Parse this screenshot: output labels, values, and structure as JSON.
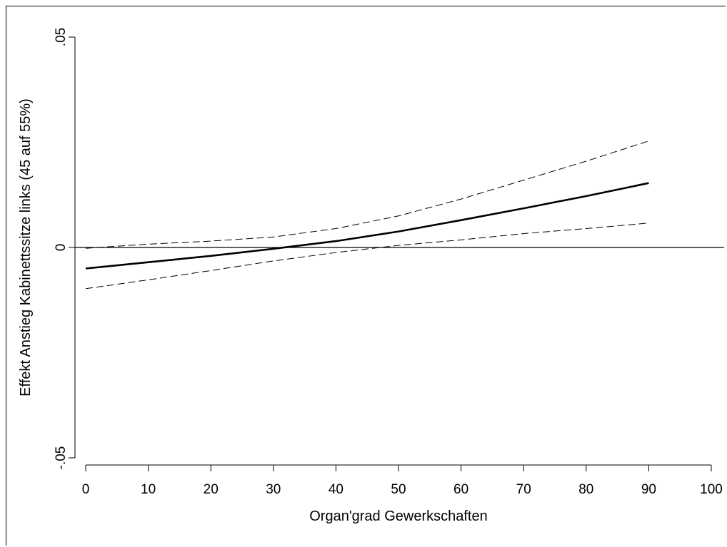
{
  "chart_data": {
    "type": "line",
    "title": "",
    "xlabel": "Organ'grad Gewerkschaften",
    "ylabel": "Effekt Anstieg Kabinettssitze links (45 auf 55%)",
    "xlim": [
      0,
      100
    ],
    "ylim": [
      -0.05,
      0.05
    ],
    "x_ticks": [
      0,
      10,
      20,
      30,
      40,
      50,
      60,
      70,
      80,
      90,
      100
    ],
    "x_tick_labels": [
      "0",
      "10",
      "20",
      "30",
      "40",
      "50",
      "60",
      "70",
      "80",
      "90",
      "100"
    ],
    "y_ticks": [
      -0.05,
      0,
      0.05
    ],
    "y_tick_labels": [
      "-.05",
      "0",
      ".05"
    ],
    "reference_line_y": 0,
    "grid": false,
    "x": [
      0,
      10,
      20,
      30,
      40,
      50,
      60,
      70,
      80,
      90
    ],
    "series": [
      {
        "style": "solid-bold",
        "values": [
          -0.005,
          -0.0035,
          -0.002,
          -0.0003,
          0.0015,
          0.0038,
          0.0065,
          0.0093,
          0.0122,
          0.0153
        ]
      },
      {
        "style": "dashed",
        "values": [
          -0.0002,
          0.0008,
          0.0015,
          0.0025,
          0.0045,
          0.0075,
          0.0115,
          0.016,
          0.0205,
          0.0253
        ]
      },
      {
        "style": "dashed",
        "values": [
          -0.0098,
          -0.0077,
          -0.0055,
          -0.0032,
          -0.0012,
          0.0005,
          0.0018,
          0.0033,
          0.0045,
          0.0058
        ]
      }
    ]
  }
}
